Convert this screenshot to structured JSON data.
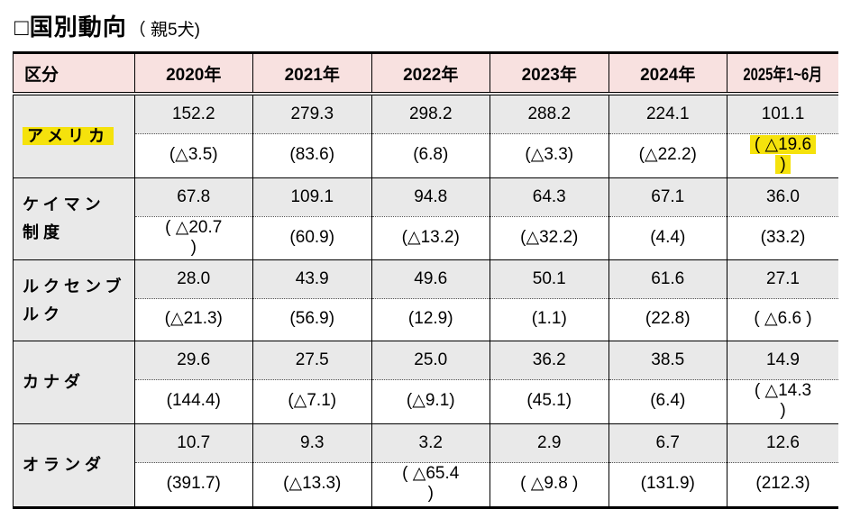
{
  "title": {
    "main": "□国別動向",
    "suffix": "（ 親5犬)"
  },
  "colors": {
    "header_bg": "#f8e1e0",
    "shaded_cell_bg": "#e9e9e9",
    "highlight_yellow": "#f5e20c",
    "border": "#000000"
  },
  "table": {
    "headers": [
      "区分",
      "2020年",
      "2021年",
      "2022年",
      "2023年",
      "2024年",
      "2025年1~6月"
    ],
    "rows": [
      {
        "name": "アメリカ",
        "name_highlight": true,
        "values": [
          "152.2",
          "279.3",
          "298.2",
          "288.2",
          "224.1",
          "101.1"
        ],
        "parens": [
          "(△3.5)",
          "(83.6)",
          "(6.8)",
          "(△3.3)",
          "(△22.2)",
          "( △19.6\n)"
        ],
        "paren_highlight_col": 5
      },
      {
        "name": "ケイマン\n制度",
        "name_highlight": false,
        "values": [
          "67.8",
          "109.1",
          "94.8",
          "64.3",
          "67.1",
          "36.0"
        ],
        "parens": [
          "( △20.7\n)",
          "(60.9)",
          "(△13.2)",
          "(△32.2)",
          "(4.4)",
          "(33.2)"
        ],
        "paren_highlight_col": null
      },
      {
        "name": "ルクセンブ\nルク",
        "name_highlight": false,
        "values": [
          "28.0",
          "43.9",
          "49.6",
          "50.1",
          "61.6",
          "27.1"
        ],
        "parens": [
          "(△21.3)",
          "(56.9)",
          "(12.9)",
          "(1.1)",
          "(22.8)",
          "( △6.6 )"
        ],
        "paren_highlight_col": null
      },
      {
        "name": "カナダ",
        "name_highlight": false,
        "values": [
          "29.6",
          "27.5",
          "25.0",
          "36.2",
          "38.5",
          "14.9"
        ],
        "parens": [
          "(144.4)",
          "(△7.1)",
          "(△9.1)",
          "(45.1)",
          "(6.4)",
          "( △14.3\n)"
        ],
        "paren_highlight_col": null
      },
      {
        "name": "オランダ",
        "name_highlight": false,
        "values": [
          "10.7",
          "9.3",
          "3.2",
          "2.9",
          "6.7",
          "12.6"
        ],
        "parens": [
          "(391.7)",
          "(△13.3)",
          "( △65.4\n)",
          "( △9.8 )",
          "(131.9)",
          "(212.3)"
        ],
        "paren_highlight_col": null
      }
    ]
  }
}
